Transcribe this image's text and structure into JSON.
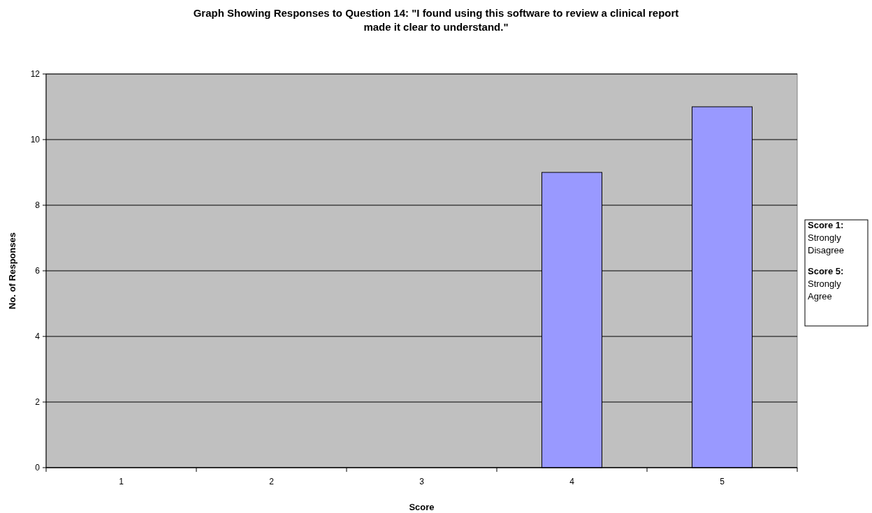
{
  "chart_data": {
    "type": "bar",
    "title": "Graph Showing Responses to Question 14: \"I found using this software to review a clinical report made it clear to understand.\"",
    "xlabel": "Score",
    "ylabel": "No. of Responses",
    "categories": [
      "1",
      "2",
      "3",
      "4",
      "5"
    ],
    "values": [
      0,
      0,
      0,
      9,
      11
    ],
    "color": "#9999ff",
    "ylim": [
      0,
      12
    ],
    "yticks": [
      0,
      2,
      4,
      6,
      8,
      10,
      12
    ],
    "grid": "y",
    "annotations": [
      "Score 1: Strongly Disagree",
      "Score 5: Strongly Agree"
    ]
  }
}
